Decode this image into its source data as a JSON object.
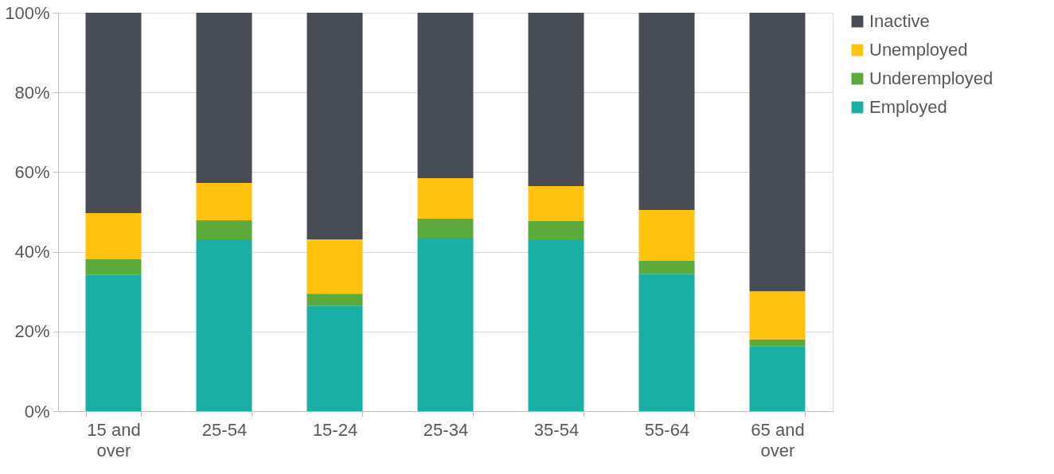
{
  "chart_data": {
    "type": "bar",
    "stacked": true,
    "categories": [
      "15 and over",
      "25-54",
      "15-24",
      "25-34",
      "35-54",
      "55-64",
      "65 and over"
    ],
    "series": [
      {
        "name": "Employed",
        "color": "#1aafa5",
        "values": [
          34.3,
          43.1,
          26.5,
          43.5,
          42.9,
          34.5,
          16.2
        ]
      },
      {
        "name": "Underemployed",
        "color": "#5aaa3c",
        "values": [
          3.8,
          4.8,
          3.0,
          4.8,
          4.8,
          3.2,
          1.8
        ]
      },
      {
        "name": "Unemployed",
        "color": "#ffc20e",
        "values": [
          11.6,
          9.4,
          13.6,
          10.2,
          8.8,
          12.8,
          12.1
        ]
      },
      {
        "name": "Inactive",
        "color": "#474b54",
        "values": [
          50.3,
          42.7,
          56.9,
          41.5,
          43.5,
          49.5,
          69.9
        ]
      }
    ],
    "ylim": [
      0,
      100
    ],
    "yticks": [
      {
        "value": 0,
        "label": "0%"
      },
      {
        "value": 20,
        "label": "20%"
      },
      {
        "value": 40,
        "label": "40%"
      },
      {
        "value": 60,
        "label": "60%"
      },
      {
        "value": 80,
        "label": "80%"
      },
      {
        "value": 100,
        "label": "100%"
      }
    ],
    "grid": "y",
    "legend": "right"
  }
}
